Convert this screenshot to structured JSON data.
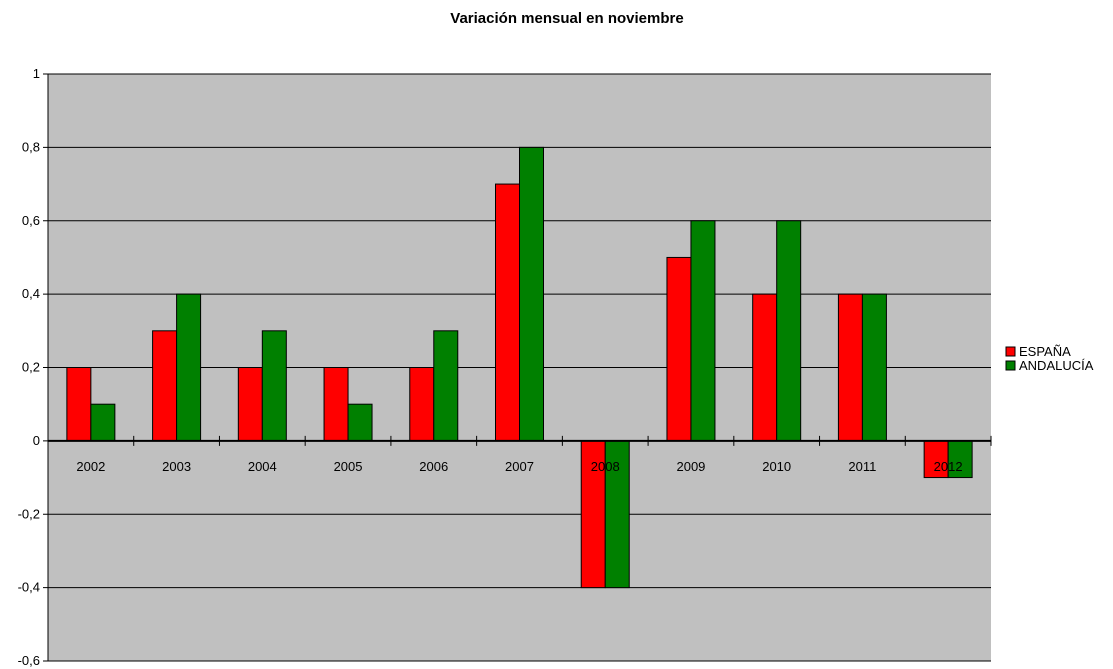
{
  "chart_data": {
    "type": "bar",
    "title": "Variación mensual en noviembre",
    "xlabel": "",
    "ylabel": "",
    "categories": [
      "2002",
      "2003",
      "2004",
      "2005",
      "2006",
      "2007",
      "2008",
      "2009",
      "2010",
      "2011",
      "2012"
    ],
    "series": [
      {
        "name": "ESPAÑA",
        "color": "#ff0000",
        "values": [
          0.2,
          0.3,
          0.2,
          0.2,
          0.2,
          0.7,
          -0.4,
          0.5,
          0.4,
          0.4,
          -0.1
        ]
      },
      {
        "name": "ANDALUCÍA",
        "color": "#008000",
        "values": [
          0.1,
          0.4,
          0.3,
          0.1,
          0.3,
          0.8,
          -0.4,
          0.6,
          0.6,
          0.4,
          -0.1
        ]
      }
    ],
    "ylim": [
      -0.6,
      1
    ],
    "yticks": [
      "-0,6",
      "-0,4",
      "-0,2",
      "0",
      "0,2",
      "0,4",
      "0,6",
      "0,8",
      "1"
    ],
    "ytick_values": [
      -0.6,
      -0.4,
      -0.2,
      0,
      0.2,
      0.4,
      0.6,
      0.8,
      1
    ],
    "grid": true,
    "legend_position": "right",
    "plot_background": "#c0c0c0"
  }
}
